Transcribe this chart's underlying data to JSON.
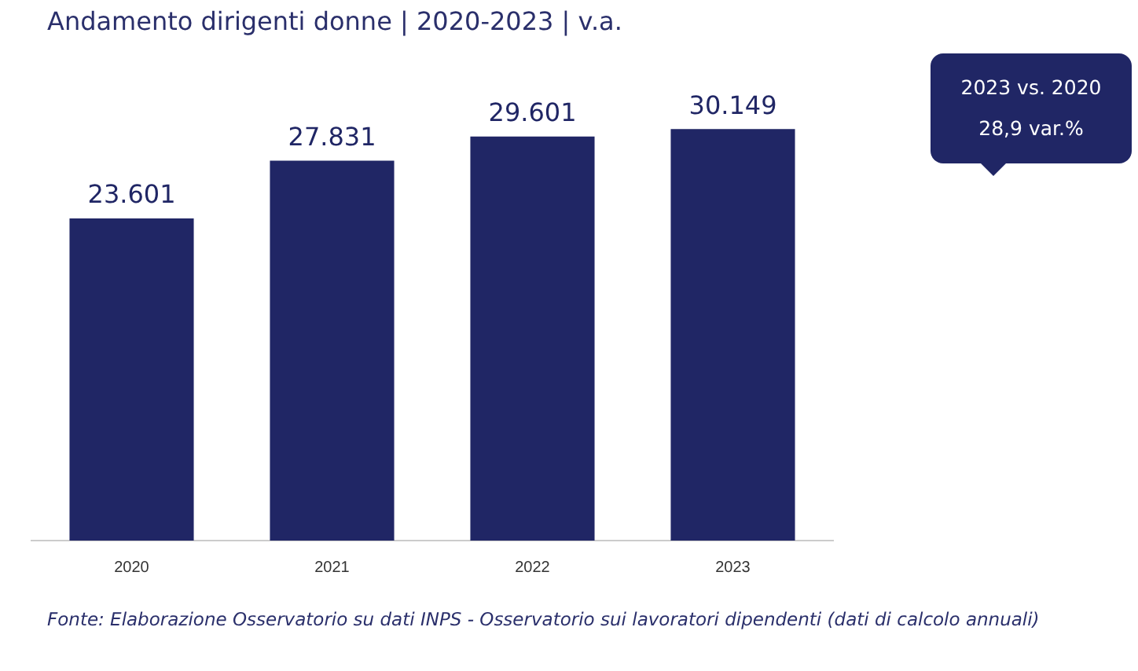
{
  "chart_data": {
    "type": "bar",
    "title": "Andamento dirigenti donne | 2020-2023 | v.a.",
    "categories": [
      "2020",
      "2021",
      "2022",
      "2023"
    ],
    "values": [
      23601,
      27831,
      29601,
      30149
    ],
    "value_labels": [
      "23.601",
      "27.831",
      "29.601",
      "30.149"
    ],
    "color": "#202665",
    "grid": false,
    "annotations": [
      "2023 vs. 2020\n28,9 var.%",
      "Fonte: Elaborazione Osservatorio su dati INPS - Osservatorio sui lavoratori dipendenti (dati di calcolo annuali)"
    ]
  }
}
